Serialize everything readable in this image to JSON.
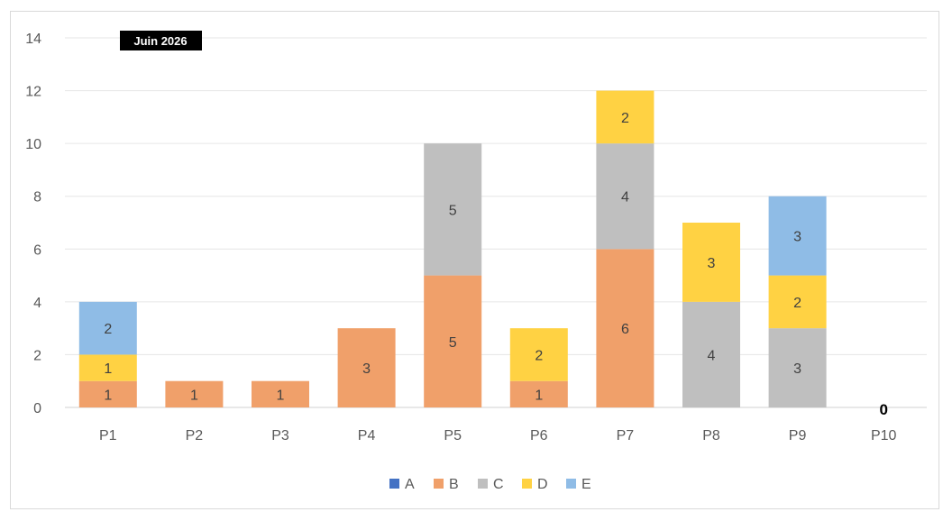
{
  "chart_data": {
    "type": "bar",
    "stacked": true,
    "title": "Juin 2026",
    "categories": [
      "P1",
      "P2",
      "P3",
      "P4",
      "P5",
      "P6",
      "P7",
      "P8",
      "P9",
      "P10"
    ],
    "series": [
      {
        "name": "A",
        "values": [
          0,
          0,
          0,
          0,
          0,
          0,
          0,
          0,
          0,
          0
        ]
      },
      {
        "name": "B",
        "values": [
          1,
          1,
          1,
          3,
          5,
          1,
          6,
          0,
          0,
          0
        ]
      },
      {
        "name": "C",
        "values": [
          0,
          0,
          0,
          0,
          5,
          0,
          4,
          4,
          3,
          0
        ]
      },
      {
        "name": "D",
        "values": [
          1,
          0,
          0,
          0,
          0,
          2,
          2,
          3,
          2,
          0
        ]
      },
      {
        "name": "E",
        "values": [
          2,
          0,
          0,
          0,
          0,
          0,
          0,
          0,
          3,
          0
        ]
      }
    ],
    "ylim": [
      0,
      14
    ],
    "yticks": [
      "0",
      "2",
      "4",
      "6",
      "8",
      "10",
      "12",
      "14"
    ],
    "grid": true,
    "legend_position": "bottom",
    "extra_labels": [
      {
        "category": "P10",
        "text": "0"
      }
    ],
    "colors": {
      "A": "#4472c4",
      "B": "#f0a06a",
      "C": "#bfbfbf",
      "D": "#ffd243",
      "E": "#8fbce6"
    }
  }
}
